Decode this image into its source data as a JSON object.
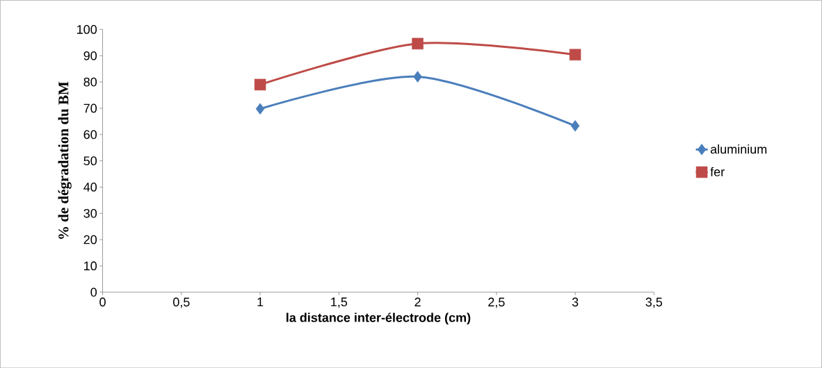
{
  "chart_data": {
    "type": "line",
    "xlabel": "la distance inter-électrode (cm)",
    "ylabel": "% de dégradation du BM",
    "xlim": [
      0,
      3.5
    ],
    "xticks": [
      0,
      {
        "value": 0.5,
        "label": "0,5"
      },
      1,
      {
        "value": 1.5,
        "label": "1,5"
      },
      2,
      {
        "value": 2.5,
        "label": "2,5"
      },
      3,
      {
        "value": 3.5,
        "label": "3,5"
      }
    ],
    "ylim": [
      0,
      100
    ],
    "yticks": [
      0,
      10,
      20,
      30,
      40,
      50,
      60,
      70,
      80,
      90,
      100
    ],
    "x": [
      1,
      2,
      3
    ],
    "grid": false,
    "legend": "right",
    "series": [
      {
        "name": "aluminium",
        "color": "#4a7ebb",
        "values": [
          69.8,
          82,
          63.3
        ],
        "marker": "diamond"
      },
      {
        "name": "fer",
        "color": "#be4b48",
        "values": [
          79,
          94.6,
          90.4
        ],
        "marker": "square"
      }
    ]
  }
}
